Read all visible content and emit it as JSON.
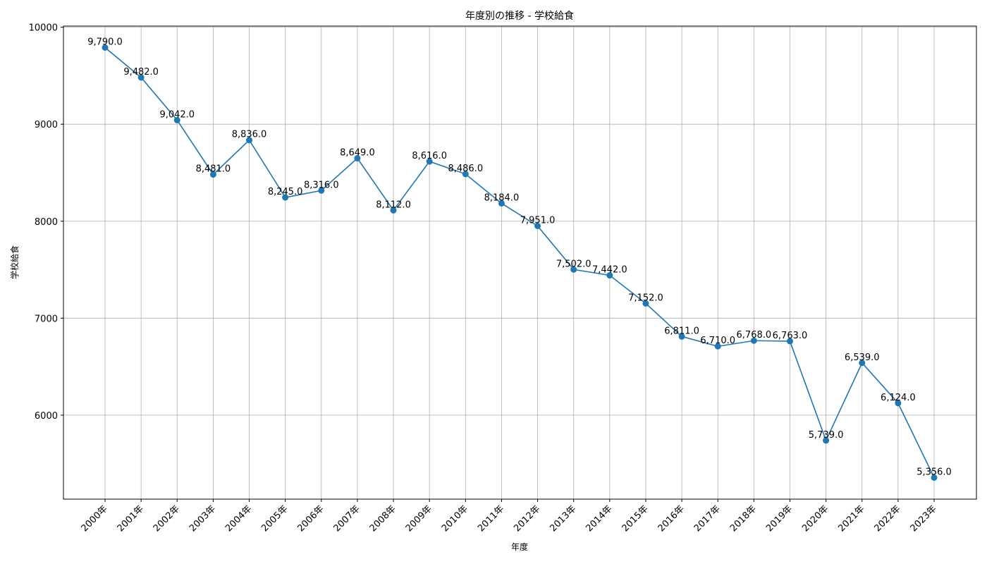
{
  "chart_data": {
    "type": "line",
    "title": "年度別の推移 - 学校給食",
    "xlabel": "年度",
    "ylabel": "学校給食",
    "categories": [
      "2000年",
      "2001年",
      "2002年",
      "2003年",
      "2004年",
      "2005年",
      "2006年",
      "2007年",
      "2008年",
      "2009年",
      "2010年",
      "2011年",
      "2012年",
      "2013年",
      "2014年",
      "2015年",
      "2016年",
      "2017年",
      "2018年",
      "2019年",
      "2020年",
      "2021年",
      "2022年",
      "2023年"
    ],
    "series": [
      {
        "values": [
          9790.0,
          9482.0,
          9042.0,
          8481.0,
          8836.0,
          8245.0,
          8316.0,
          8649.0,
          8112.0,
          8616.0,
          8486.0,
          8184.0,
          7951.0,
          7502.0,
          7442.0,
          7152.0,
          6811.0,
          6710.0,
          6768.0,
          6763.0,
          5739.0,
          6539.0,
          6124.0,
          5356.0
        ],
        "data_labels": [
          "9,790.0",
          "9,482.0",
          "9,042.0",
          "8,481.0",
          "8,836.0",
          "8,245.0",
          "8,316.0",
          "8,649.0",
          "8,112.0",
          "8,616.0",
          "8,486.0",
          "8,184.0",
          "7,951.0",
          "7,502.0",
          "7,442.0",
          "7,152.0",
          "6,811.0",
          "6,710.0",
          "6,768.0",
          "6,763.0",
          "5,739.0",
          "6,539.0",
          "6,124.0",
          "5,356.0"
        ]
      }
    ],
    "yticks": [
      6000,
      7000,
      8000,
      9000,
      10000
    ],
    "ylim": [
      5134.3,
      10011.7
    ],
    "grid": true,
    "legend": "none",
    "colors": {
      "line": "#1f77b4",
      "marker": "#1f77b4",
      "grid": "#b0b0b0"
    }
  }
}
